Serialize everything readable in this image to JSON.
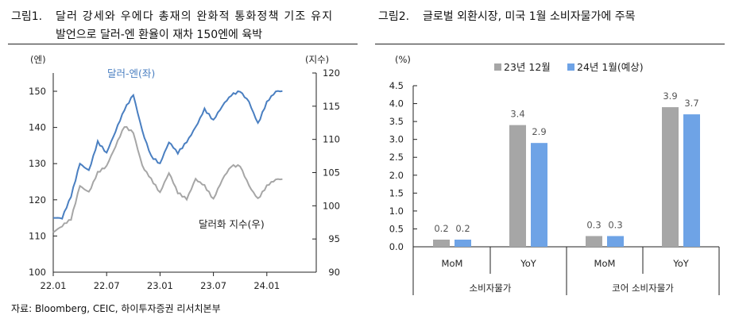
{
  "fig1": {
    "title_prefix": "그림1.",
    "title_line1": "달러 강세와 우에다 총재의 완화적 통화정책 기조 유지",
    "title_line2": "발언으로 달러-엔 환율이 재차 150엔에 육박"
  },
  "fig2": {
    "title_prefix": "그림2.",
    "title_line1": "글로벌 외환시장, 미국 1월 소비자물가에 주목"
  },
  "source": "자료: Bloomberg, CEIC, 하이투자증권 리서치본부",
  "chart_data": [
    {
      "type": "line",
      "title": "",
      "ylabel_left": "(엔)",
      "ylabel_right": "(지수)",
      "ylim_left": [
        100,
        150
      ],
      "yticks_left": [
        "100",
        "110",
        "120",
        "130",
        "140",
        "150"
      ],
      "ylim_right": [
        90,
        120
      ],
      "yticks_right": [
        "90",
        "95",
        "100",
        "105",
        "110",
        "115",
        "120"
      ],
      "xticks": [
        "22.01",
        "22.07",
        "23.01",
        "23.07",
        "24.01"
      ],
      "x": [
        "22.01",
        "22.02",
        "22.03",
        "22.04",
        "22.05",
        "22.06",
        "22.07",
        "22.08",
        "22.09",
        "22.10",
        "22.11",
        "22.12",
        "23.01",
        "23.02",
        "23.03",
        "23.04",
        "23.05",
        "23.06",
        "23.07",
        "23.08",
        "23.09",
        "23.10",
        "23.11",
        "23.12",
        "24.01",
        "24.02"
      ],
      "series": [
        {
          "name": "달러-엔(좌)",
          "axis": "left",
          "color": "#4a7fc1",
          "values": [
            115,
            115,
            121,
            130,
            128,
            136,
            133,
            139,
            145,
            149,
            139,
            132,
            130,
            136,
            133,
            136,
            140,
            145,
            142,
            146,
            149,
            150,
            147,
            141,
            147,
            150
          ]
        },
        {
          "name": "달러화 지수(우)",
          "axis": "right",
          "color": "#a6a6a6",
          "values": [
            96,
            97,
            98,
            103,
            102,
            105,
            106,
            109,
            112,
            111,
            106,
            104,
            102,
            105,
            102,
            101,
            104,
            103,
            101,
            104,
            106,
            106,
            103,
            101,
            103,
            104
          ]
        }
      ]
    },
    {
      "type": "bar",
      "ylabel": "(%)",
      "ylim": [
        0,
        4.5
      ],
      "yticks": [
        "0.0",
        "0.5",
        "1.0",
        "1.5",
        "2.0",
        "2.5",
        "3.0",
        "3.5",
        "4.0",
        "4.5"
      ],
      "categories": [
        "MoM",
        "YoY",
        "MoM",
        "YoY"
      ],
      "groups": [
        "소비자물가",
        "코어 소비자물가"
      ],
      "series": [
        {
          "name": "23년 12월",
          "color": "#a6a6a6",
          "values": [
            0.2,
            3.4,
            0.3,
            3.9
          ],
          "labels": [
            "0.2",
            "3.4",
            "0.3",
            "3.9"
          ]
        },
        {
          "name": "24년 1월(예상)",
          "color": "#6ea3e6",
          "values": [
            0.2,
            2.9,
            0.3,
            3.7
          ],
          "labels": [
            "0.2",
            "2.9",
            "0.3",
            "3.7"
          ]
        }
      ]
    }
  ]
}
